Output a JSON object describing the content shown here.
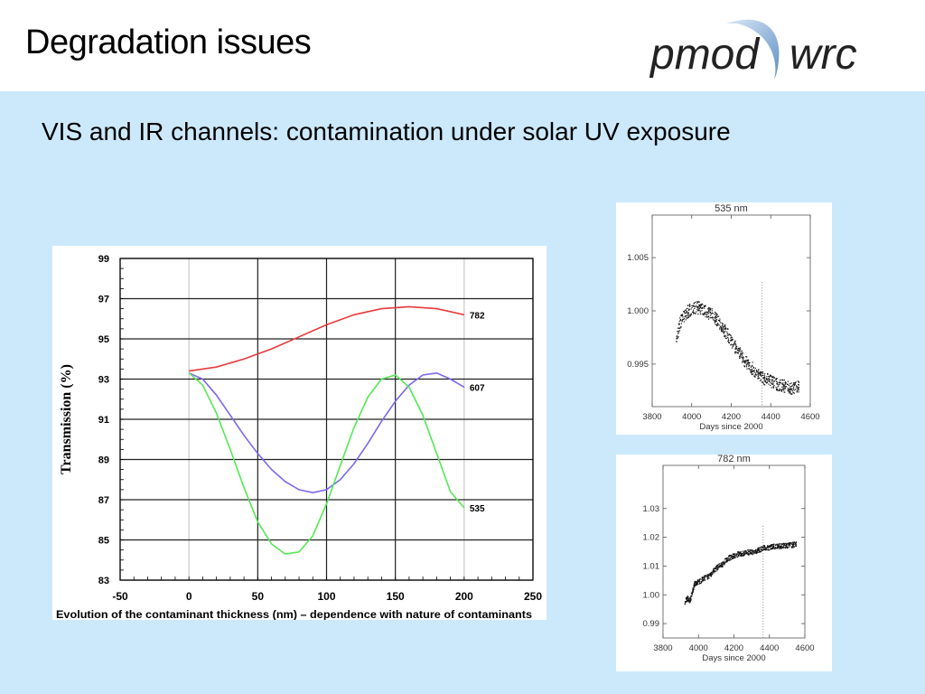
{
  "slide": {
    "title": "Degradation issues",
    "subtitle": "VIS and IR channels: contamination under solar UV exposure",
    "logo": {
      "left": "pmod",
      "right": "wrc"
    }
  },
  "chart_data": [
    {
      "type": "line",
      "title": "",
      "xlabel": "Evolution of the contaminant thickness (nm) – dependence with nature of contaminants",
      "ylabel": "Transmission (%)",
      "xlim": [
        -50,
        250
      ],
      "ylim": [
        83,
        99
      ],
      "xticks": [
        -50,
        0,
        50,
        100,
        150,
        200,
        250
      ],
      "yticks": [
        83,
        85,
        87,
        89,
        91,
        93,
        95,
        97,
        99
      ],
      "grid": true,
      "series": [
        {
          "name": "782",
          "color": "#e83a3a",
          "x": [
            0,
            20,
            40,
            60,
            80,
            100,
            120,
            140,
            160,
            180,
            200
          ],
          "y": [
            93.4,
            93.6,
            94.0,
            94.5,
            95.1,
            95.7,
            96.2,
            96.5,
            96.6,
            96.5,
            96.2
          ]
        },
        {
          "name": "607",
          "color": "#7b68ee",
          "x": [
            0,
            10,
            20,
            30,
            40,
            50,
            60,
            70,
            80,
            90,
            100,
            110,
            120,
            130,
            140,
            150,
            160,
            170,
            180,
            190,
            200
          ],
          "y": [
            93.3,
            93.0,
            92.2,
            91.2,
            90.2,
            89.3,
            88.5,
            87.9,
            87.5,
            87.35,
            87.5,
            88.0,
            88.8,
            89.8,
            90.9,
            91.9,
            92.7,
            93.2,
            93.3,
            93.0,
            92.6
          ]
        },
        {
          "name": "535",
          "color": "#55e855",
          "x": [
            0,
            10,
            20,
            30,
            40,
            50,
            60,
            70,
            80,
            90,
            100,
            110,
            120,
            130,
            140,
            150,
            160,
            170,
            180,
            190,
            200
          ],
          "y": [
            93.3,
            92.7,
            91.3,
            89.5,
            87.6,
            85.9,
            84.8,
            84.3,
            84.4,
            85.2,
            86.8,
            88.7,
            90.6,
            92.1,
            93.0,
            93.2,
            92.6,
            91.2,
            89.3,
            87.4,
            86.6
          ]
        }
      ]
    },
    {
      "type": "scatter",
      "title": "535 nm",
      "xlabel": "Days since 2000",
      "ylabel": "",
      "xlim": [
        3800,
        4600
      ],
      "ylim": [
        0.991,
        1.009
      ],
      "xticks": [
        3800,
        4000,
        4200,
        4400,
        4600
      ],
      "yticks": [
        0.995,
        1.0,
        1.005
      ],
      "ytick_labels": [
        "0.995",
        "1.000",
        "1.005"
      ],
      "grid": false,
      "x": [
        3920,
        3940,
        3960,
        3980,
        4000,
        4020,
        4040,
        4060,
        4080,
        4100,
        4120,
        4140,
        4160,
        4180,
        4200,
        4220,
        4240,
        4260,
        4280,
        4300,
        4320,
        4340,
        4360,
        4380,
        4400,
        4420,
        4440,
        4460,
        4480,
        4500,
        4520,
        4540
      ],
      "y": [
        0.9975,
        0.999,
        0.9995,
        1.0,
        1.0003,
        1.0004,
        1.0003,
        1.0001,
        0.9999,
        0.9997,
        0.9993,
        0.9988,
        0.9983,
        0.9978,
        0.9972,
        0.9966,
        0.9961,
        0.9955,
        0.9951,
        0.9947,
        0.9944,
        0.994,
        0.9937,
        0.9936,
        0.9934,
        0.9932,
        0.9931,
        0.993,
        0.9929,
        0.9928,
        0.9928,
        0.9929
      ]
    },
    {
      "type": "scatter",
      "title": "782 nm",
      "xlabel": "Days since 2000",
      "ylabel": "",
      "xlim": [
        3800,
        4600
      ],
      "ylim": [
        0.985,
        1.045
      ],
      "xticks": [
        3800,
        4000,
        4200,
        4400,
        4600
      ],
      "yticks": [
        0.99,
        1.0,
        1.01,
        1.02,
        1.03
      ],
      "ytick_labels": [
        "0.99",
        "1.00",
        "1.01",
        "1.02",
        "1.03"
      ],
      "grid": false,
      "x": [
        3920,
        3935,
        3950,
        3965,
        3975,
        3990,
        4010,
        4030,
        4050,
        4070,
        4090,
        4110,
        4130,
        4150,
        4170,
        4190,
        4210,
        4230,
        4250,
        4270,
        4290,
        4310,
        4330,
        4350,
        4370,
        4390,
        4410,
        4430,
        4450,
        4470,
        4490,
        4510,
        4530,
        4550
      ],
      "y": [
        0.9975,
        0.999,
        0.998,
        1.0015,
        1.004,
        1.0045,
        1.005,
        1.006,
        1.0065,
        1.0075,
        1.009,
        1.01,
        1.0105,
        1.012,
        1.013,
        1.0135,
        1.014,
        1.0145,
        1.0145,
        1.0148,
        1.015,
        1.015,
        1.0155,
        1.016,
        1.0165,
        1.0165,
        1.0168,
        1.017,
        1.017,
        1.0172,
        1.0172,
        1.0175,
        1.0175,
        1.0178
      ]
    }
  ]
}
